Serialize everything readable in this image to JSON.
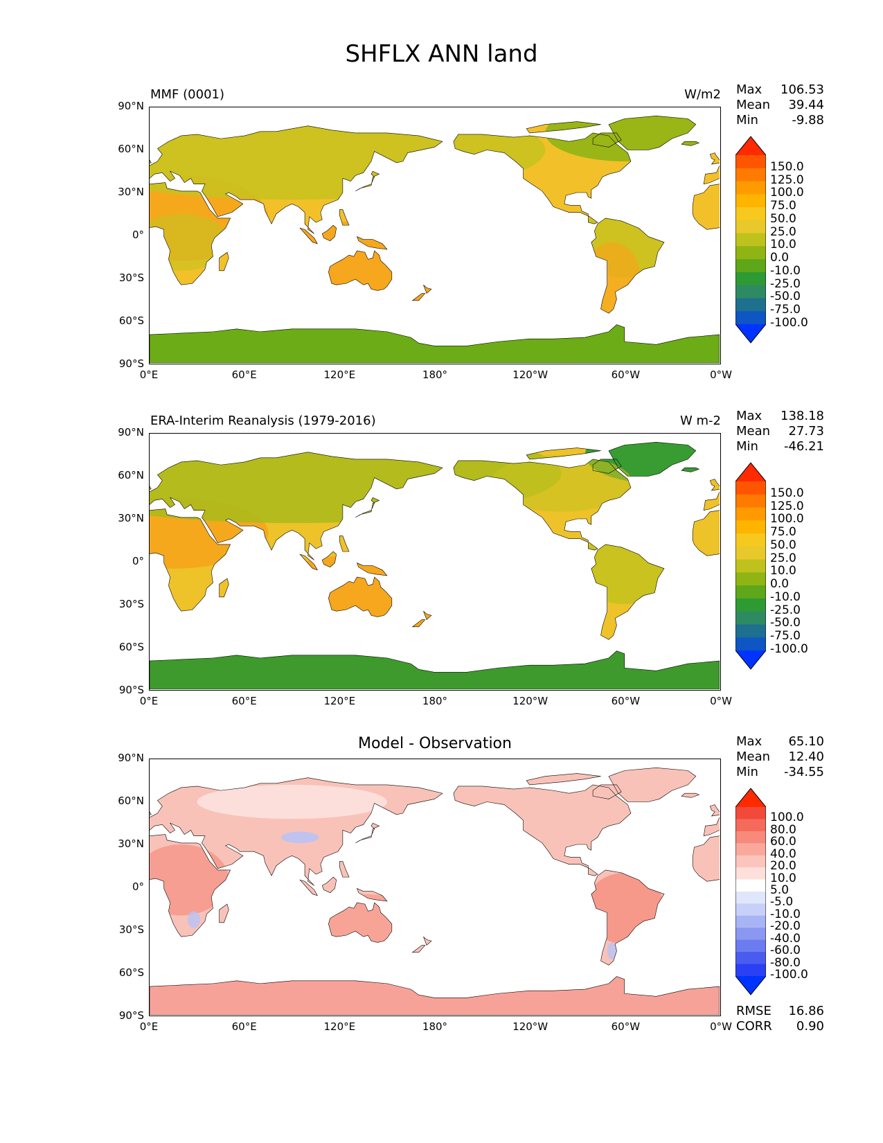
{
  "figure": {
    "title": "SHFLX ANN land",
    "lat_ticks": [
      "90°N",
      "60°N",
      "30°N",
      "0°",
      "30°S",
      "60°S",
      "90°S"
    ],
    "lon_ticks": [
      "0°E",
      "60°E",
      "120°E",
      "180°",
      "120°W",
      "60°W",
      "0°W"
    ]
  },
  "panels": [
    {
      "title": "MMF (0001)",
      "units": "W/m2",
      "stats": [
        {
          "label": "Max",
          "value": "106.53"
        },
        {
          "label": "Mean",
          "value": "39.44"
        },
        {
          "label": "Min",
          "value": "-9.88"
        }
      ],
      "colorbar": {
        "labels": [
          "150.0",
          "125.0",
          "100.0",
          "75.0",
          "50.0",
          "25.0",
          "10.0",
          "0.0",
          "-10.0",
          "-25.0",
          "-50.0",
          "-75.0",
          "-100.0"
        ],
        "colors": [
          "#ff2a00",
          "#ff5500",
          "#ff7a00",
          "#ff9a00",
          "#ffb400",
          "#f7c81e",
          "#e8c82a",
          "#bfc21d",
          "#8fb414",
          "#5ea61a",
          "#2e9a33",
          "#2e8a62",
          "#1f6f8f",
          "#0d56c4",
          "#0033ff"
        ]
      }
    },
    {
      "title": "ERA-Interim Reanalysis (1979-2016)",
      "units": "W m-2",
      "stats": [
        {
          "label": "Max",
          "value": "138.18"
        },
        {
          "label": "Mean",
          "value": "27.73"
        },
        {
          "label": "Min",
          "value": "-46.21"
        }
      ],
      "colorbar": {
        "labels": [
          "150.0",
          "125.0",
          "100.0",
          "75.0",
          "50.0",
          "25.0",
          "10.0",
          "0.0",
          "-10.0",
          "-25.0",
          "-50.0",
          "-75.0",
          "-100.0"
        ],
        "colors": [
          "#ff2a00",
          "#ff5500",
          "#ff7a00",
          "#ff9a00",
          "#ffb400",
          "#f7c81e",
          "#e8c82a",
          "#bfc21d",
          "#8fb414",
          "#5ea61a",
          "#2e9a33",
          "#2e8a62",
          "#1f6f8f",
          "#0d56c4",
          "#0033ff"
        ]
      }
    },
    {
      "title": "Model - Observation",
      "units": "",
      "stats": [
        {
          "label": "Max",
          "value": "65.10"
        },
        {
          "label": "Mean",
          "value": "12.40"
        },
        {
          "label": "Min",
          "value": "-34.55"
        }
      ],
      "metrics": [
        {
          "label": "RMSE",
          "value": "16.86"
        },
        {
          "label": "CORR",
          "value": "0.90"
        }
      ],
      "colorbar": {
        "labels": [
          "100.0",
          "80.0",
          "60.0",
          "40.0",
          "20.0",
          "10.0",
          "5.0",
          "-5.0",
          "-10.0",
          "-20.0",
          "-40.0",
          "-60.0",
          "-80.0",
          "-100.0"
        ],
        "colors": [
          "#ff2a00",
          "#f24a3a",
          "#f56a5a",
          "#f88a7c",
          "#fba89c",
          "#fcc5bc",
          "#fde0da",
          "#ffffff",
          "#e0e6fb",
          "#c7d0f8",
          "#a8b4f5",
          "#8a98f2",
          "#6c7cf0",
          "#4a5cf0",
          "#2a40f5",
          "#0033ff"
        ]
      }
    }
  ],
  "chart_data": [
    {
      "type": "heatmap",
      "title": "MMF (0001)",
      "units": "W/m2",
      "region": "land",
      "season": "ANN",
      "x_range": [
        0,
        360
      ],
      "y_range": [
        -90,
        90
      ],
      "stats": {
        "max": 106.53,
        "mean": 39.44,
        "min": -9.88
      },
      "levels": [
        -100,
        -75,
        -50,
        -25,
        -10,
        0,
        10,
        25,
        50,
        75,
        100,
        125,
        150
      ]
    },
    {
      "type": "heatmap",
      "title": "ERA-Interim Reanalysis (1979-2016)",
      "units": "W m-2",
      "region": "land",
      "season": "ANN",
      "x_range": [
        0,
        360
      ],
      "y_range": [
        -90,
        90
      ],
      "stats": {
        "max": 138.18,
        "mean": 27.73,
        "min": -46.21
      },
      "levels": [
        -100,
        -75,
        -50,
        -25,
        -10,
        0,
        10,
        25,
        50,
        75,
        100,
        125,
        150
      ]
    },
    {
      "type": "heatmap",
      "title": "Model - Observation",
      "region": "land",
      "season": "ANN",
      "x_range": [
        0,
        360
      ],
      "y_range": [
        -90,
        90
      ],
      "stats": {
        "max": 65.1,
        "mean": 12.4,
        "min": -34.55,
        "rmse": 16.86,
        "corr": 0.9
      },
      "levels": [
        -100,
        -80,
        -60,
        -40,
        -20,
        -10,
        -5,
        5,
        10,
        20,
        40,
        60,
        80,
        100
      ]
    }
  ]
}
